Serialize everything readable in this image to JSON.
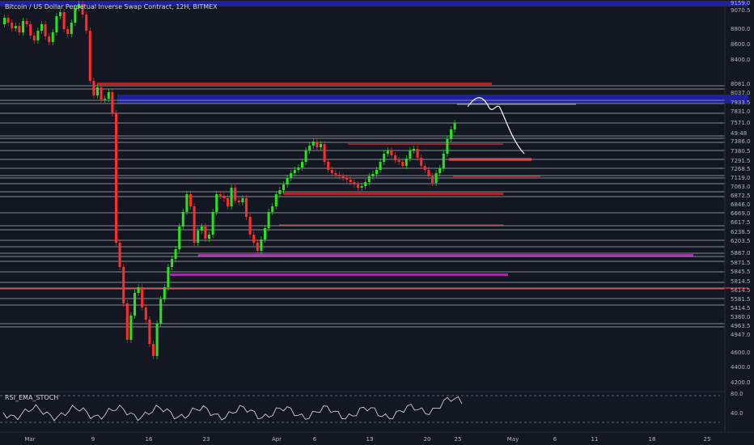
{
  "header": {
    "title": "Bitcoin / US Dollar Perpetual Inverse Swap Contract, 12H, BITMEX"
  },
  "indicator": {
    "name": "RSI_EMA_STOCH"
  },
  "colors": {
    "background": "#131722",
    "up": "#26e619",
    "down": "#ff2d2d",
    "level_white": "#c8cad1",
    "zone_blue": "#1f1fa0",
    "zone_purple": "#b030b0",
    "zone_red": "#c82828",
    "projection": "#ffffff"
  },
  "price_axis": {
    "labels": [
      "9159.0",
      "9070.5",
      "8800.0",
      "8600.0",
      "8400.0",
      "8081.0",
      "8037.0",
      "7933.5",
      "7831.0",
      "7571.0",
      "49:48",
      "7386.0",
      "7380.5",
      "7291.5",
      "7268.5",
      "7119.0",
      "7063.0",
      "6872.5",
      "6846.0",
      "6669.0",
      "6617.5",
      "6238.5",
      "6203.5",
      "5887.0",
      "5871.5",
      "5845.5",
      "5814.5",
      "5614.5",
      "5581.5",
      "5414.5",
      "5380.0",
      "4963.5",
      "4947.0",
      "4600.0",
      "4400.0",
      "4200.0"
    ]
  },
  "indicator_axis": {
    "labels": [
      "80.0",
      "40.0"
    ]
  },
  "time_axis": {
    "labels": [
      "Mar",
      "9",
      "16",
      "23",
      "Apr",
      "6",
      "13",
      "20",
      "25",
      "May",
      "6",
      "11",
      "18",
      "25"
    ]
  },
  "chart_data": {
    "type": "candlestick",
    "timeframe": "12H",
    "price_levels": [
      9159.0,
      9070.5,
      8081.0,
      8037.0,
      7933.5,
      7831.0,
      7571.0,
      7386.0,
      7380.5,
      7291.5,
      7268.5,
      7119.0,
      7063.0,
      6872.5,
      6846.0,
      6669.0,
      6617.5,
      6238.5,
      6203.5,
      5887.0,
      5871.5,
      5845.5,
      5814.5,
      5614.5,
      5581.5,
      5414.5,
      5380.0,
      4963.5,
      4947.0
    ],
    "projection": "white hand-drawn path: rise above 7933.5 then drop toward 7380.5"
  }
}
